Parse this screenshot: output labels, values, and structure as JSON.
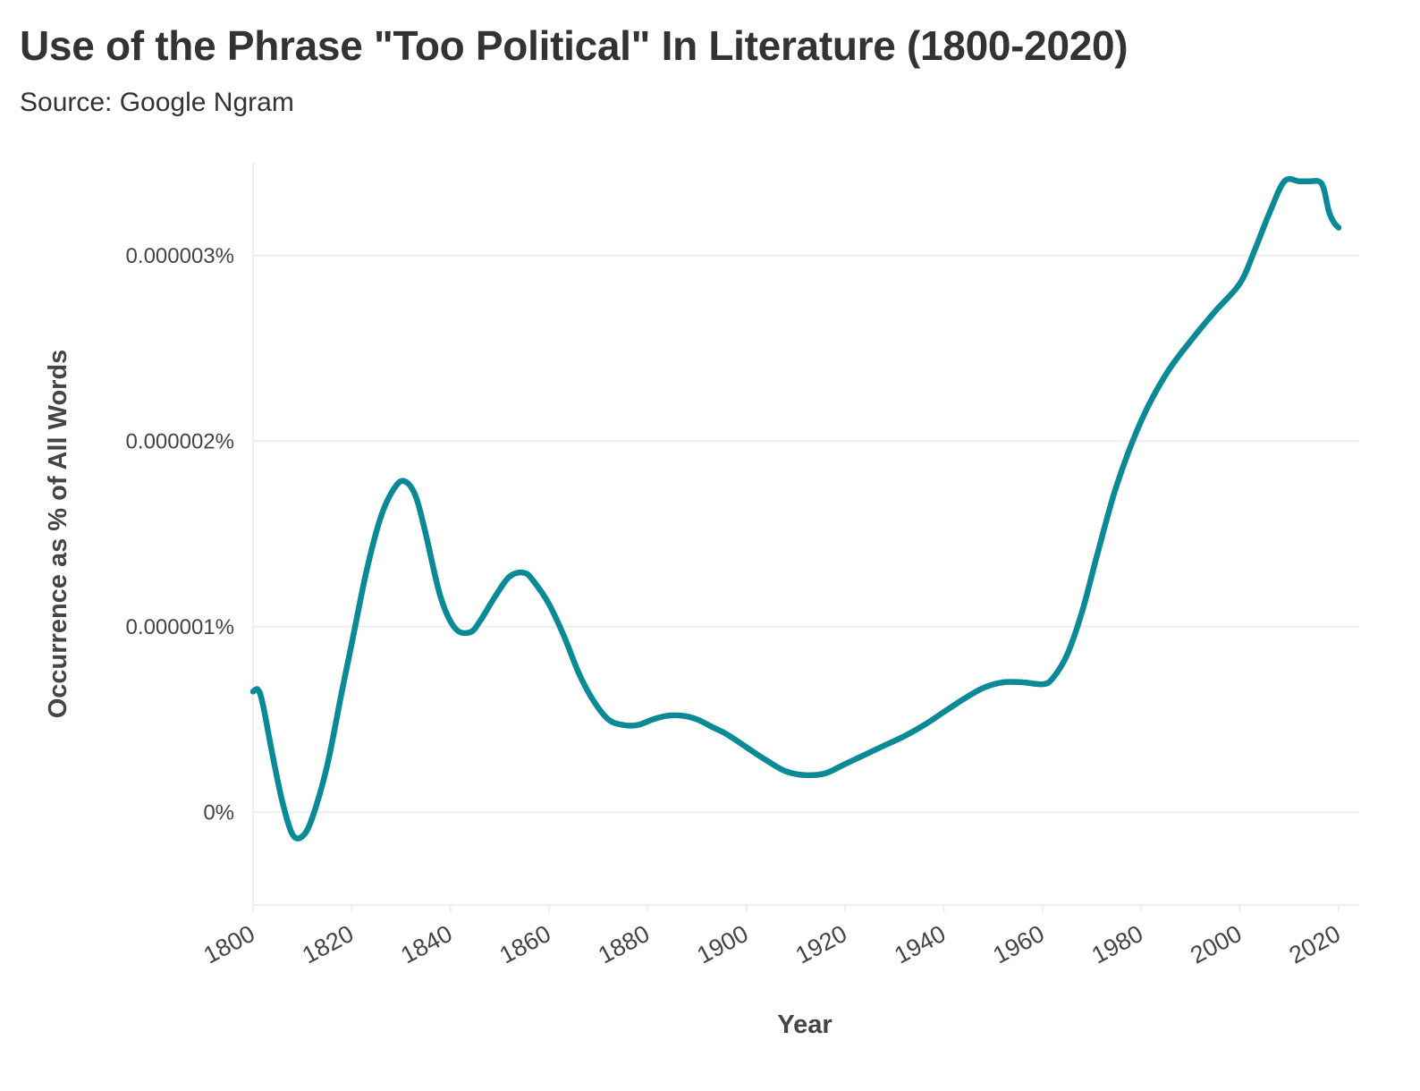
{
  "title": "Use of the Phrase \"Too Political\" In Literature (1800-2020)",
  "subtitle": "Source: Google Ngram",
  "colors": {
    "line": "#0a8a96",
    "grid": "#eeeeee",
    "text": "#333333"
  },
  "chart_data": {
    "type": "line",
    "title": "Use of the Phrase \"Too Political\" In Literature (1800-2020)",
    "subtitle": "Source: Google Ngram",
    "xlabel": "Year",
    "ylabel": "Occurrence as % of All Words",
    "xlim": [
      1800,
      2020
    ],
    "ylim": [
      -5e-07,
      3.5e-06
    ],
    "x_ticks": [
      1800,
      1820,
      1840,
      1860,
      1880,
      1900,
      1920,
      1940,
      1960,
      1980,
      2000,
      2020
    ],
    "y_ticks": [
      0,
      1e-06,
      2e-06,
      3e-06
    ],
    "y_tick_labels": [
      "0%",
      "0.000001%",
      "0.000002%",
      "0.000003%"
    ],
    "grid": true,
    "legend": "none",
    "series": [
      {
        "x": [
          1800,
          1801,
          1802,
          1804,
          1806,
          1808,
          1810,
          1812,
          1815,
          1818,
          1820,
          1823,
          1826,
          1829,
          1831,
          1833,
          1835,
          1838,
          1841,
          1844,
          1846,
          1849,
          1852,
          1855,
          1857,
          1860,
          1863,
          1866,
          1869,
          1872,
          1875,
          1878,
          1881,
          1884,
          1887,
          1890,
          1893,
          1896,
          1900,
          1904,
          1908,
          1912,
          1916,
          1920,
          1924,
          1928,
          1932,
          1936,
          1940,
          1944,
          1948,
          1952,
          1956,
          1960,
          1962,
          1965,
          1968,
          1971,
          1975,
          1980,
          1985,
          1990,
          1995,
          2000,
          2003,
          2006,
          2009,
          2012,
          2014,
          2016,
          2017,
          2018,
          2019,
          2020
        ],
        "values": [
          6.5e-07,
          6.6e-07,
          5.8e-07,
          3e-07,
          5e-08,
          -1.2e-07,
          -1.3e-07,
          -3e-08,
          2.5e-07,
          6.5e-07,
          9.1e-07,
          1.3e-06,
          1.6e-06,
          1.76e-06,
          1.78e-06,
          1.7e-06,
          1.5e-06,
          1.16e-06,
          9.9e-07,
          9.7e-07,
          1.03e-06,
          1.16e-06,
          1.27e-06,
          1.29e-06,
          1.24e-06,
          1.12e-06,
          9.5e-07,
          7.5e-07,
          6e-07,
          5e-07,
          4.7e-07,
          4.7e-07,
          5e-07,
          5.2e-07,
          5.2e-07,
          5e-07,
          4.6e-07,
          4.2e-07,
          3.5e-07,
          2.8e-07,
          2.2e-07,
          2e-07,
          2.1e-07,
          2.6e-07,
          3.1e-07,
          3.6e-07,
          4.1e-07,
          4.7e-07,
          5.4e-07,
          6.1e-07,
          6.7e-07,
          7e-07,
          7e-07,
          6.9e-07,
          7.2e-07,
          8.5e-07,
          1.08e-06,
          1.38e-06,
          1.76e-06,
          2.11e-06,
          2.36e-06,
          2.54e-06,
          2.7e-06,
          2.85e-06,
          3.03e-06,
          3.23e-06,
          3.4e-06,
          3.4e-06,
          3.4e-06,
          3.4e-06,
          3.36e-06,
          3.24e-06,
          3.18e-06,
          3.15e-06
        ]
      }
    ]
  }
}
